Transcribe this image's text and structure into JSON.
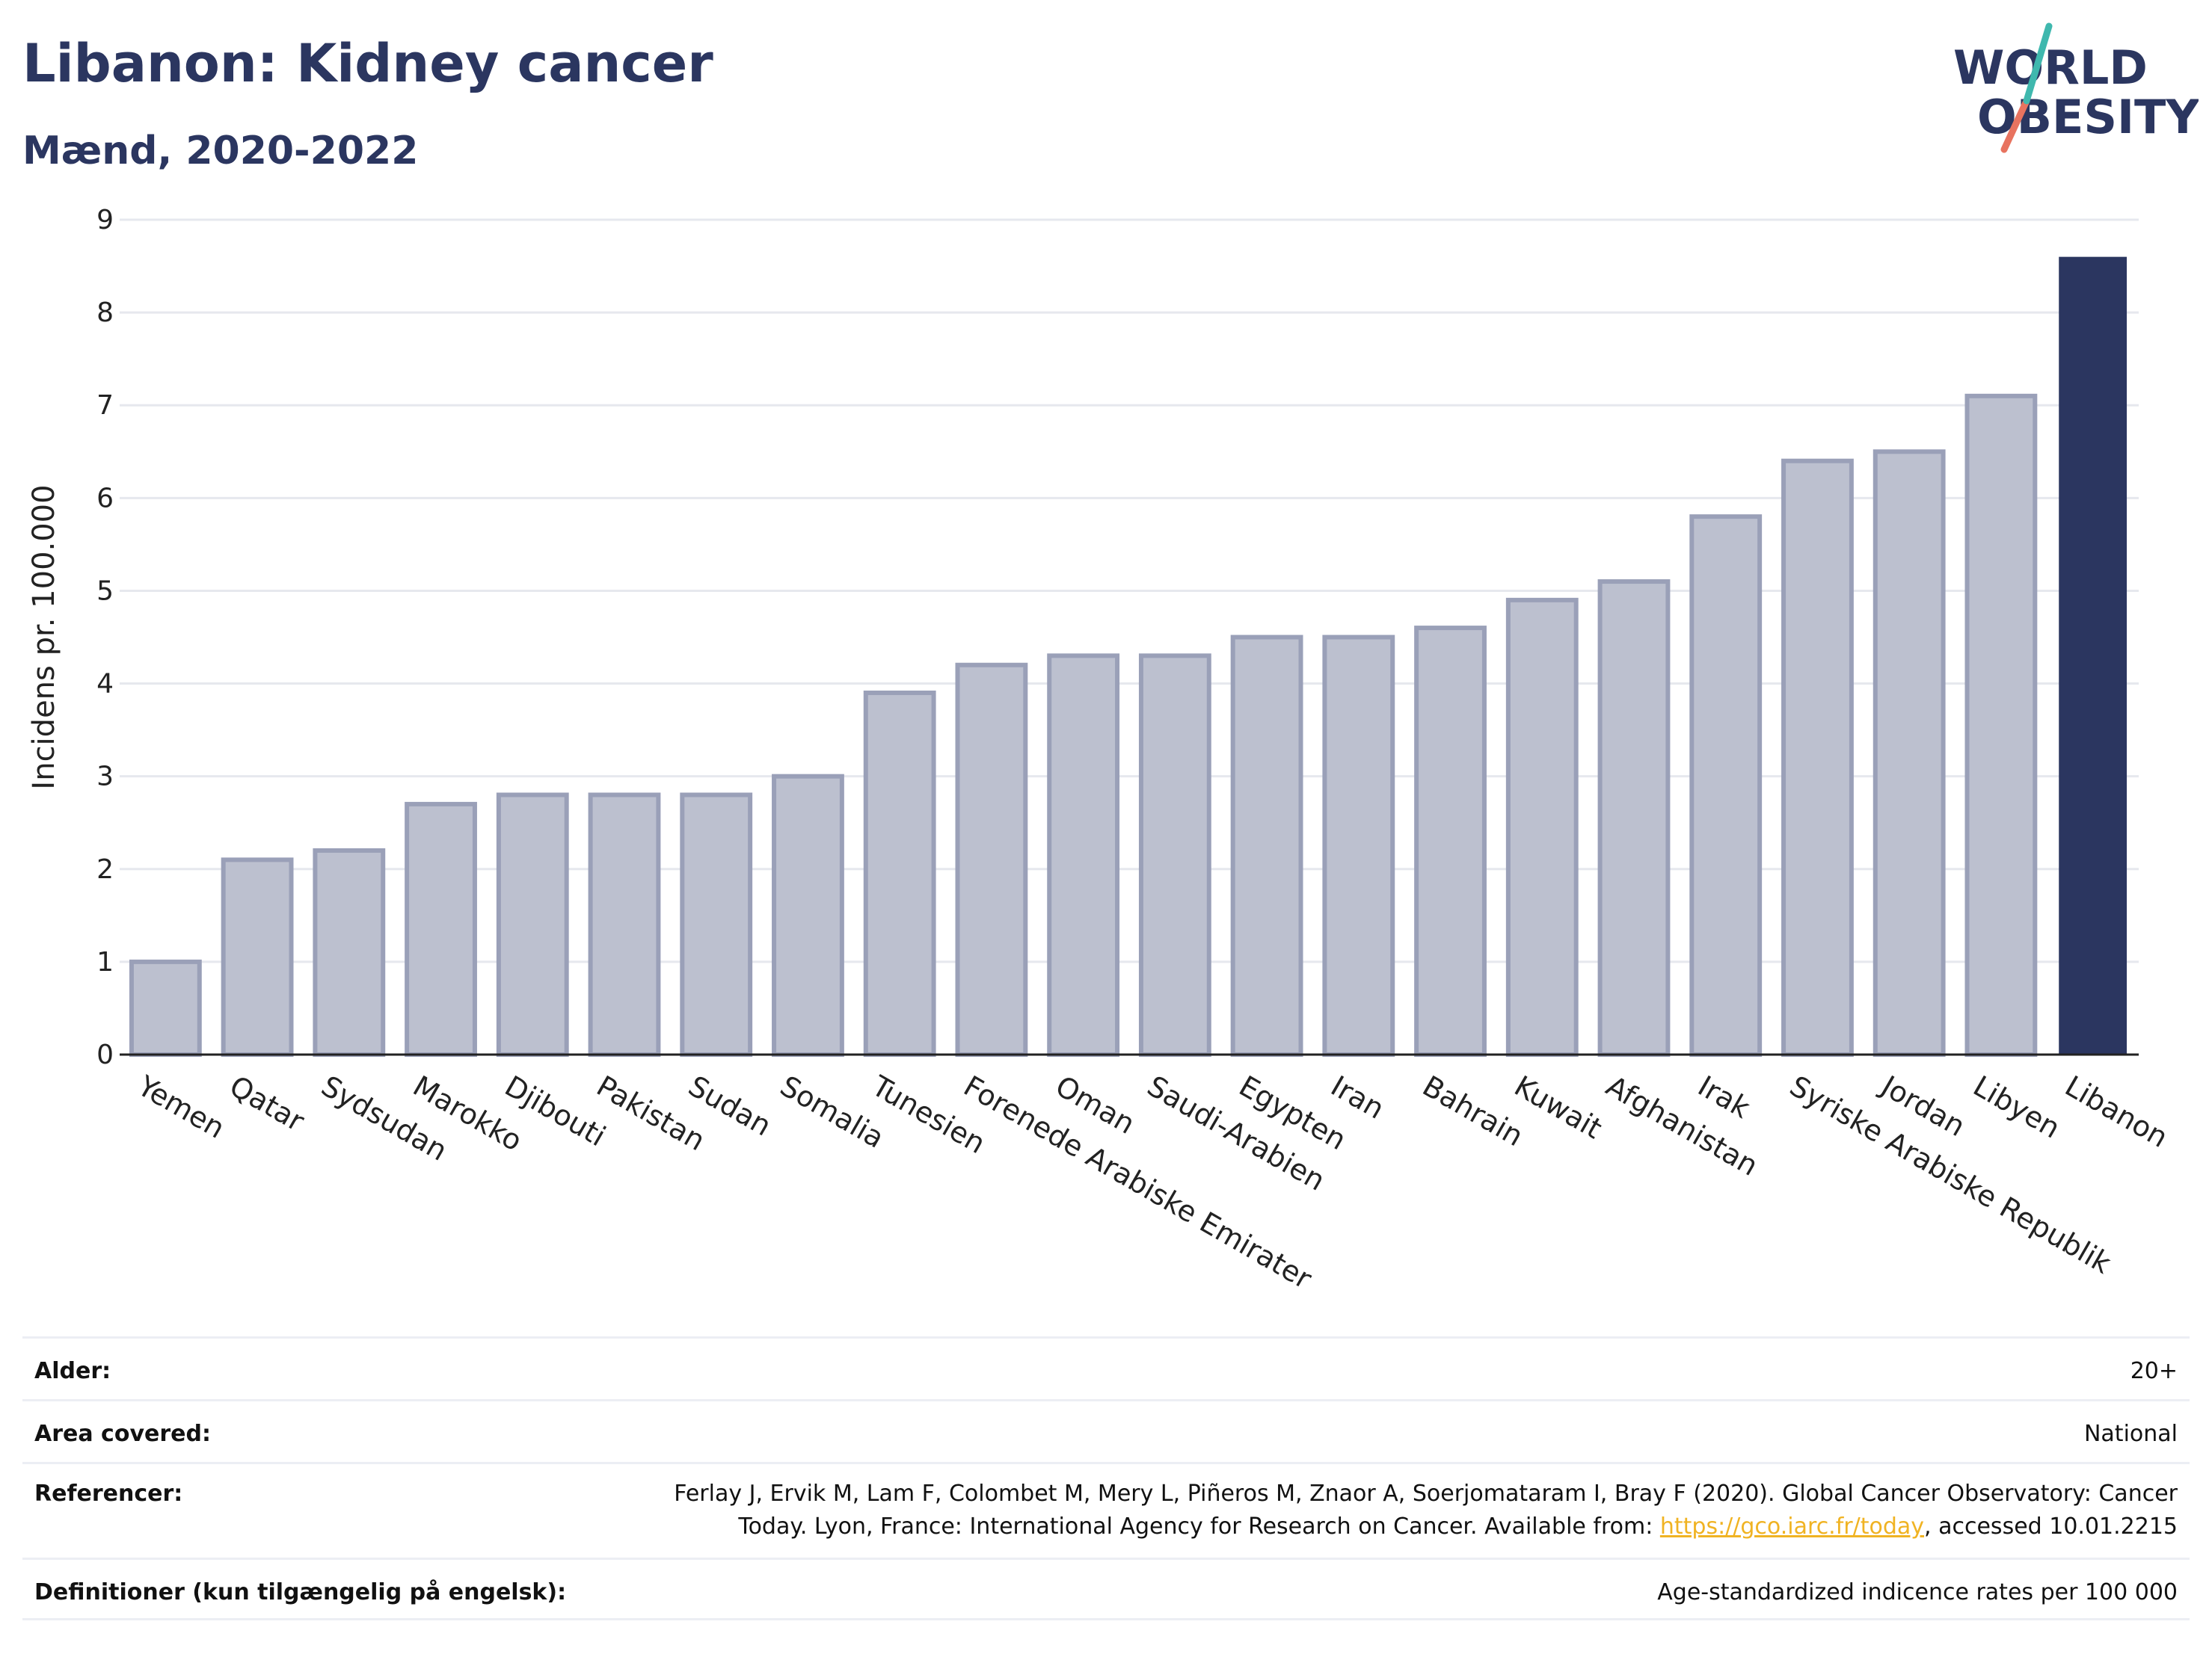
{
  "header": {
    "title": "Libanon: Kidney cancer",
    "subtitle": "Mænd, 2020-2022"
  },
  "logo": {
    "line1": "WORLD",
    "line2": "OBESITY"
  },
  "colors": {
    "bar": "#bcc0cf",
    "bar_border": "#9aa0b8",
    "highlight": "#2b3660",
    "grid": "#e6e8ee",
    "text": "#2b3660"
  },
  "chart_data": {
    "type": "bar",
    "ylabel": "Incidens pr. 100.000",
    "ylim": [
      0,
      9
    ],
    "yticks": [
      0,
      1,
      2,
      3,
      4,
      5,
      6,
      7,
      8,
      9
    ],
    "grid": true,
    "highlight": "Libanon",
    "categories": [
      "Yemen",
      "Qatar",
      "Sydsudan",
      "Marokko",
      "Djibouti",
      "Pakistan",
      "Sudan",
      "Somalia",
      "Tunesien",
      "Forenede Arabiske Emirater",
      "Oman",
      "Saudi-Arabien",
      "Egypten",
      "Iran",
      "Bahrain",
      "Kuwait",
      "Afghanistan",
      "Irak",
      "Syriske Arabiske Republik",
      "Jordan",
      "Libyen",
      "Libanon"
    ],
    "values": [
      1.0,
      2.1,
      2.2,
      2.7,
      2.8,
      2.8,
      2.8,
      3.0,
      3.9,
      4.2,
      4.3,
      4.3,
      4.5,
      4.5,
      4.6,
      4.9,
      5.1,
      5.8,
      6.4,
      6.5,
      7.1,
      8.6
    ]
  },
  "info": {
    "age_label": "Alder:",
    "age_value": "20+",
    "area_label": "Area covered:",
    "area_value": "National",
    "ref_label": "Referencer:",
    "ref_text_1": "Ferlay J, Ervik M, Lam F, Colombet M, Mery L, Piñeros M, Znaor A, Soerjomataram I, Bray F (2020). Global Cancer Observatory: Cancer",
    "ref_text_2": "Today. Lyon, France: International Agency for Research on Cancer. Available from: ",
    "ref_link": "https://gco.iarc.fr/today",
    "ref_text_3": ", accessed 10.01.2215",
    "def_label": "Definitioner (kun tilgængelig på engelsk):",
    "def_value": "Age-standardized indicence rates per 100 000"
  }
}
